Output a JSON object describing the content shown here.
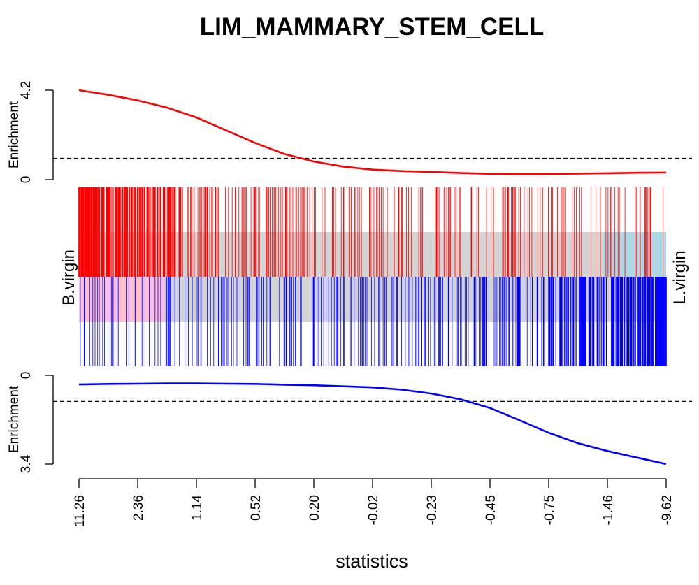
{
  "chart_data": {
    "type": "line",
    "title": "LIM_MAMMARY_STEM_CELL",
    "xlabel": "statistics",
    "x_tick_labels": [
      "11.26",
      "2.36",
      "1.14",
      "0.52",
      "0.20",
      "-0.02",
      "-0.23",
      "-0.45",
      "-0.75",
      "-1.46",
      "-9.62"
    ],
    "x_rank_range": [
      0,
      1
    ],
    "left_group_label": "B.virgin",
    "right_group_label": "L.virgin",
    "up_panel": {
      "ylabel": "Enrichment",
      "ylim": [
        0,
        4.2
      ],
      "y_tick_labels": [
        "0",
        "4.2"
      ],
      "dashed_reference": 1.0,
      "color": "#ff0000",
      "x": [
        0,
        0.05,
        0.1,
        0.15,
        0.2,
        0.25,
        0.3,
        0.35,
        0.4,
        0.45,
        0.5,
        0.55,
        0.6,
        0.65,
        0.7,
        0.75,
        0.8,
        0.85,
        0.9,
        0.95,
        1.0
      ],
      "y": [
        4.2,
        3.98,
        3.72,
        3.38,
        2.92,
        2.32,
        1.72,
        1.2,
        0.85,
        0.61,
        0.47,
        0.4,
        0.36,
        0.31,
        0.27,
        0.26,
        0.26,
        0.28,
        0.3,
        0.32,
        0.33
      ]
    },
    "down_panel": {
      "ylabel": "Enrichment",
      "ylim": [
        0,
        3.4
      ],
      "y_tick_labels": [
        "0",
        "3.4"
      ],
      "dashed_reference": 1.0,
      "color": "#0000ff",
      "x": [
        0,
        0.05,
        0.1,
        0.15,
        0.2,
        0.25,
        0.3,
        0.35,
        0.4,
        0.45,
        0.5,
        0.55,
        0.6,
        0.65,
        0.7,
        0.75,
        0.8,
        0.85,
        0.9,
        0.95,
        1.0
      ],
      "y": [
        0.35,
        0.33,
        0.32,
        0.31,
        0.31,
        0.32,
        0.33,
        0.36,
        0.38,
        0.42,
        0.46,
        0.55,
        0.7,
        0.92,
        1.25,
        1.72,
        2.2,
        2.6,
        2.9,
        3.15,
        3.4
      ]
    },
    "barcode": {
      "up_color": "#ff0000",
      "down_color": "#0000ff",
      "up_bg_left_color": "#d3d3d3",
      "up_bg_right_color": "#add8e6",
      "down_bg_left_color": "#ffc0cb",
      "down_bg_right_color": "#d3d3d3"
    }
  }
}
